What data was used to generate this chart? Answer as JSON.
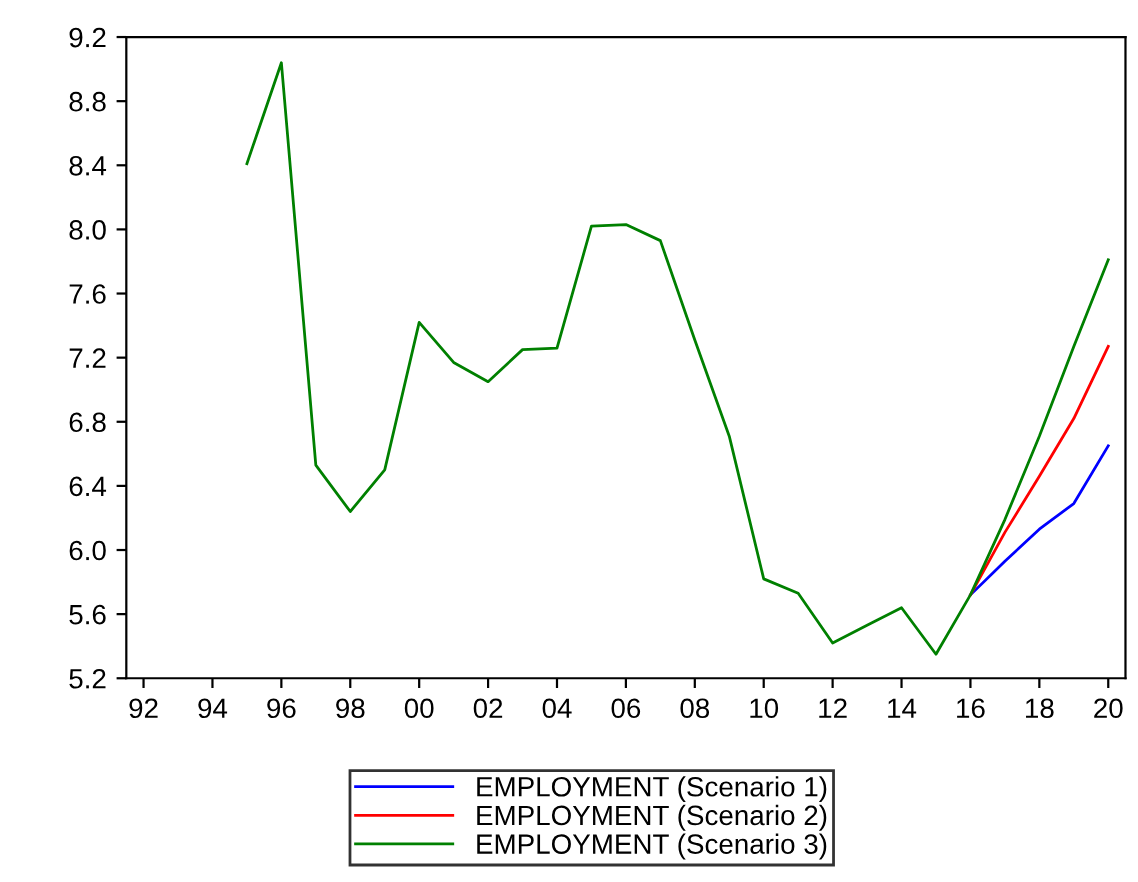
{
  "chart_data": {
    "type": "line",
    "x": [
      1995,
      1996,
      1997,
      1998,
      1999,
      2000,
      2001,
      2002,
      2003,
      2004,
      2005,
      2006,
      2007,
      2008,
      2009,
      2010,
      2011,
      2012,
      2013,
      2014,
      2015,
      2016,
      2017,
      2018,
      2019,
      2020
    ],
    "series": [
      {
        "name": "EMPLOYMENT (Scenario 1)",
        "color": "#0000ff",
        "x": [
          2016,
          2017,
          2018,
          2019,
          2020
        ],
        "values": [
          5.72,
          5.93,
          6.13,
          6.29,
          6.65
        ]
      },
      {
        "name": "EMPLOYMENT (Scenario 2)",
        "color": "#ff0000",
        "x": [
          2016,
          2017,
          2018,
          2019,
          2020
        ],
        "values": [
          5.72,
          6.11,
          6.46,
          6.82,
          7.27
        ]
      },
      {
        "name": "EMPLOYMENT (Scenario 3)",
        "color": "#008000",
        "values": [
          8.41,
          9.04,
          6.53,
          6.24,
          6.5,
          7.42,
          7.17,
          7.05,
          7.25,
          7.26,
          8.02,
          8.03,
          7.93,
          7.31,
          6.71,
          5.82,
          5.73,
          5.42,
          5.53,
          5.64,
          5.35,
          5.72,
          6.19,
          6.71,
          7.27,
          7.81
        ]
      }
    ],
    "xlim": [
      1991.5,
      2020.5
    ],
    "xticks": [
      {
        "value": 1992,
        "label": "92"
      },
      {
        "value": 1994,
        "label": "94"
      },
      {
        "value": 1996,
        "label": "96"
      },
      {
        "value": 1998,
        "label": "98"
      },
      {
        "value": 2000,
        "label": "00"
      },
      {
        "value": 2002,
        "label": "02"
      },
      {
        "value": 2004,
        "label": "04"
      },
      {
        "value": 2006,
        "label": "06"
      },
      {
        "value": 2008,
        "label": "08"
      },
      {
        "value": 2010,
        "label": "10"
      },
      {
        "value": 2012,
        "label": "12"
      },
      {
        "value": 2014,
        "label": "14"
      },
      {
        "value": 2016,
        "label": "16"
      },
      {
        "value": 2018,
        "label": "18"
      },
      {
        "value": 2020,
        "label": "20"
      }
    ],
    "ylim": [
      5.2,
      9.2
    ],
    "yticks": [
      {
        "value": 5.2,
        "label": "5.2"
      },
      {
        "value": 5.6,
        "label": "5.6"
      },
      {
        "value": 6.0,
        "label": "6.0"
      },
      {
        "value": 6.4,
        "label": "6.4"
      },
      {
        "value": 6.8,
        "label": "6.8"
      },
      {
        "value": 7.2,
        "label": "7.2"
      },
      {
        "value": 7.6,
        "label": "7.6"
      },
      {
        "value": 8.0,
        "label": "8.0"
      },
      {
        "value": 8.4,
        "label": "8.4"
      },
      {
        "value": 8.8,
        "label": "8.8"
      },
      {
        "value": 9.2,
        "label": "9.2"
      }
    ],
    "grid": false,
    "legend": "bottom",
    "line_style": "solid"
  }
}
